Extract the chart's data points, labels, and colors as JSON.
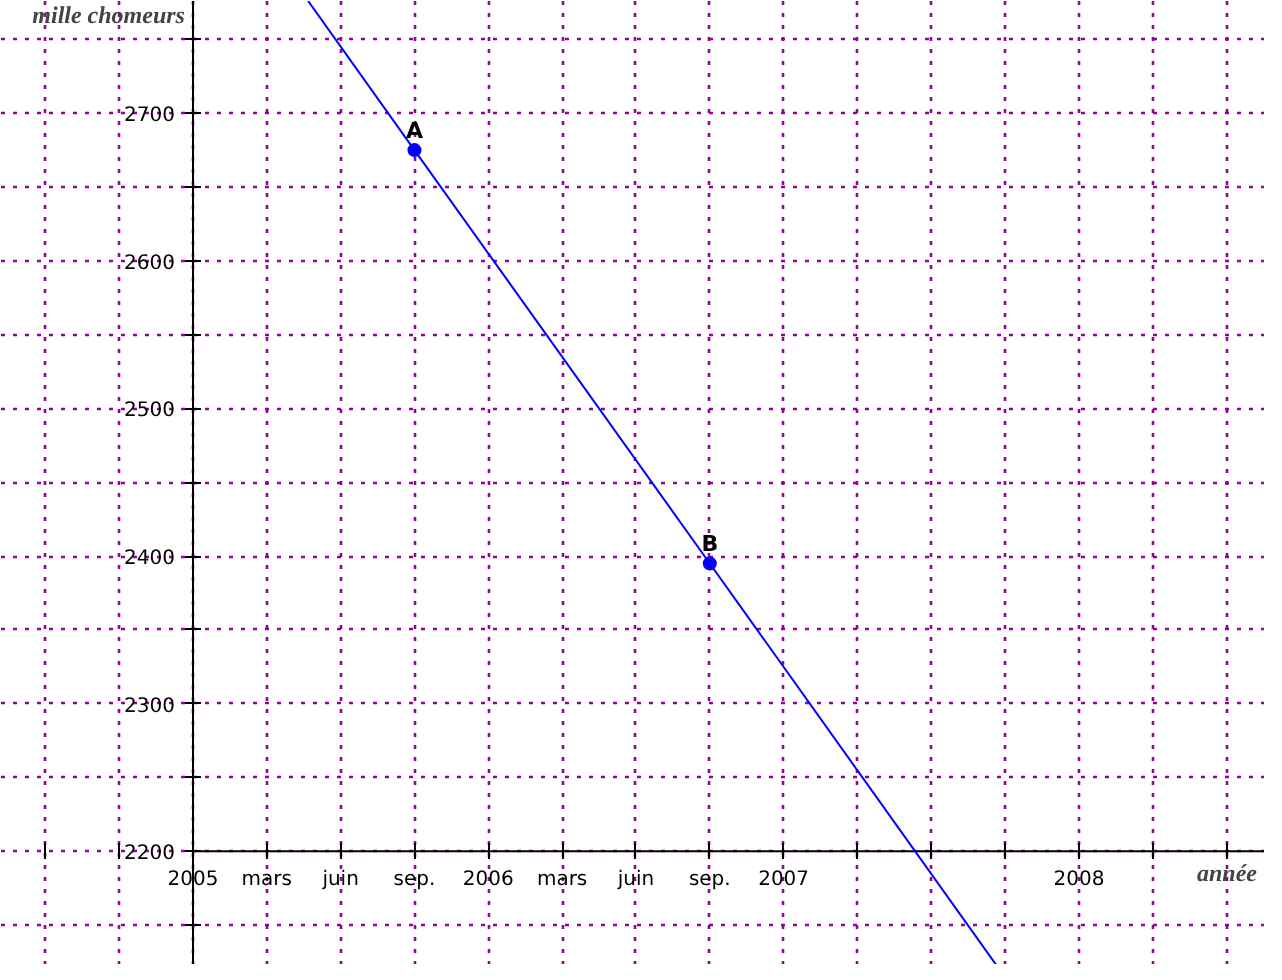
{
  "chart_data": {
    "type": "line",
    "xlabel": "année",
    "ylabel": "mille chomeurs",
    "xlim": [
      2004.35,
      2008.63
    ],
    "ylim": [
      2123,
      2776
    ],
    "xticks": [
      {
        "value": 2004.5,
        "label": null
      },
      {
        "value": 2004.75,
        "label": null
      },
      2005,
      {
        "value": 2005.25,
        "label": "mars"
      },
      {
        "value": 2005.5,
        "label": "juin"
      },
      {
        "value": 2005.75,
        "label": "sep."
      },
      2006,
      {
        "value": 2006.25,
        "label": "mars"
      },
      {
        "value": 2006.5,
        "label": "juin"
      },
      {
        "value": 2006.75,
        "label": "sep."
      },
      2007,
      {
        "value": 2007.25,
        "label": null
      },
      {
        "value": 2007.5,
        "label": null
      },
      {
        "value": 2007.75,
        "label": null
      },
      2008,
      {
        "value": 2008.25,
        "label": null
      },
      {
        "value": 2008.5,
        "label": null
      }
    ],
    "yticks": [
      {
        "value": 2150,
        "label": null
      },
      2200,
      {
        "value": 2250,
        "label": null
      },
      2300,
      {
        "value": 2350,
        "label": null
      },
      2400,
      {
        "value": 2450,
        "label": null
      },
      2500,
      {
        "value": 2550,
        "label": null
      },
      2600,
      {
        "value": 2650,
        "label": null
      },
      2700,
      {
        "value": 2750,
        "label": null
      }
    ],
    "grid": true,
    "series": [
      {
        "color": "#0000ff",
        "x": [
          2005.39,
          2005.75,
          2006.75,
          2007.72
        ],
        "values": [
          2776,
          2675,
          2395,
          2123
        ]
      },
      {
        "type": "scatter",
        "color": "#0000ff",
        "marker": "circle",
        "x": [
          2005.75,
          2006.75
        ],
        "values": [
          2675,
          2395
        ]
      }
    ],
    "annotations": [
      {
        "text": "A",
        "x": 2005.75,
        "y": 2675
      },
      {
        "text": "B",
        "x": 2006.75,
        "y": 2395
      }
    ]
  }
}
